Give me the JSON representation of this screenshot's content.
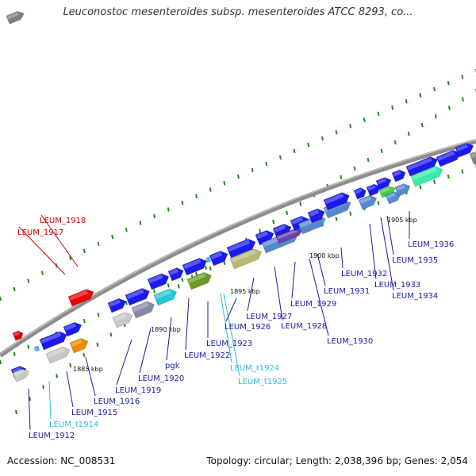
{
  "title": "Leuconostoc mesenteroides subsp. mesenteroides ATCC 8293, co...",
  "footer": {
    "accession": "Accession: NC_008531",
    "summary": "Topology: circular; Length: 2,038,396 bp; Genes: 2,054"
  },
  "colors": {
    "backbone": "#8c8c8c",
    "gene_blue": "#1a1aee",
    "trna": "#33bbee",
    "label_blue": "#1a1aa8",
    "label_red": "#cc0000",
    "label_cyan": "#33bbdd",
    "tick": "#228822"
  },
  "scale_labels": [
    {
      "text": "1885 kbp",
      "kbp": 1885
    },
    {
      "text": "1890 kbp",
      "kbp": 1890
    },
    {
      "text": "1895 kbp",
      "kbp": 1895
    },
    {
      "text": "1900 kbp",
      "kbp": 1900
    },
    {
      "text": "1905 kbp",
      "kbp": 1905
    }
  ],
  "gene_labels": [
    {
      "text": "LEUM_1912",
      "kind": "gene"
    },
    {
      "text": "LEUM_t1914",
      "kind": "trna"
    },
    {
      "text": "LEUM_1915",
      "kind": "gene"
    },
    {
      "text": "LEUM_1916",
      "kind": "gene"
    },
    {
      "text": "LEUM_1917",
      "kind": "pseudo"
    },
    {
      "text": "LEUM_1918",
      "kind": "pseudo"
    },
    {
      "text": "LEUM_1919",
      "kind": "gene"
    },
    {
      "text": "LEUM_1920",
      "kind": "gene"
    },
    {
      "text": "pgk",
      "kind": "gene"
    },
    {
      "text": "LEUM_1922",
      "kind": "gene"
    },
    {
      "text": "LEUM_1923",
      "kind": "gene"
    },
    {
      "text": "LEUM_t1924",
      "kind": "trna"
    },
    {
      "text": "LEUM_t1925",
      "kind": "trna"
    },
    {
      "text": "LEUM_1926",
      "kind": "gene"
    },
    {
      "text": "LEUM_1927",
      "kind": "gene"
    },
    {
      "text": "LEUM_1928",
      "kind": "gene"
    },
    {
      "text": "LEUM_1929",
      "kind": "gene"
    },
    {
      "text": "LEUM_1930",
      "kind": "gene"
    },
    {
      "text": "LEUM_1931",
      "kind": "gene"
    },
    {
      "text": "LEUM_1932",
      "kind": "gene"
    },
    {
      "text": "LEUM_1933",
      "kind": "gene"
    },
    {
      "text": "LEUM_1934",
      "kind": "gene"
    },
    {
      "text": "LEUM_1935",
      "kind": "gene"
    },
    {
      "text": "LEUM_1936",
      "kind": "gene"
    }
  ]
}
